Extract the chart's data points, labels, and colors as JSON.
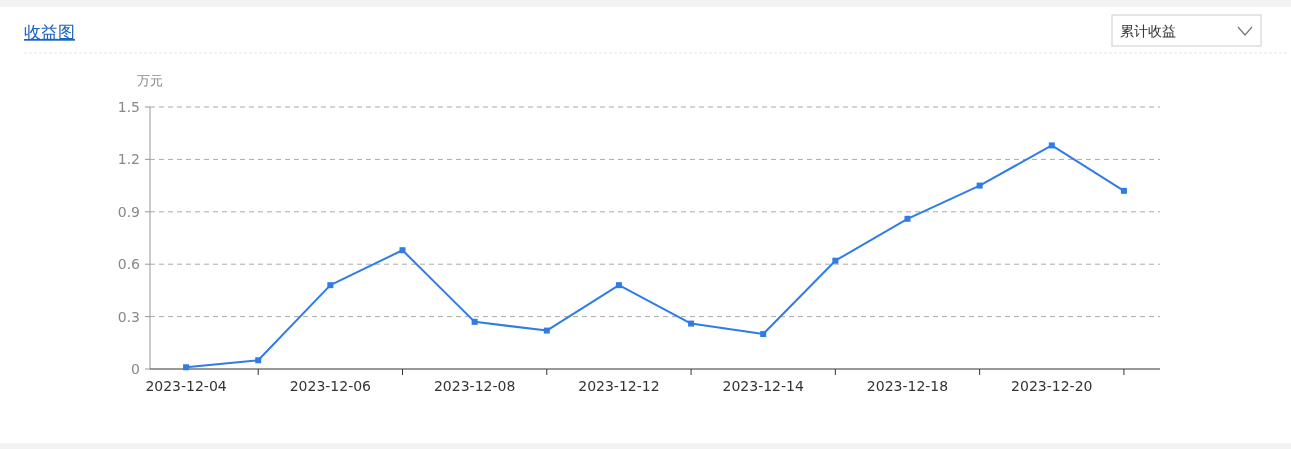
{
  "chart_data": {
    "type": "line",
    "title": "收益图",
    "ylabel": "万元",
    "annotations": [
      "累计收益"
    ],
    "categories": [
      "2023-12-04",
      null,
      "2023-12-06",
      null,
      "2023-12-08",
      null,
      "2023-12-12",
      null,
      "2023-12-14",
      null,
      "2023-12-18",
      null,
      "2023-12-20",
      null
    ],
    "series": [
      {
        "color": "#2f7ce6",
        "values": [
          0.01,
          0.05,
          0.48,
          0.68,
          0.27,
          0.22,
          0.48,
          0.26,
          0.2,
          0.62,
          0.86,
          1.05,
          1.28,
          1.02
        ]
      }
    ],
    "ylim": [
      0,
      1.5
    ],
    "yticks": [
      0,
      0.3,
      0.6,
      0.9,
      1.2,
      1.5
    ],
    "grid": "y",
    "marker": "square",
    "line_style": "solid"
  }
}
